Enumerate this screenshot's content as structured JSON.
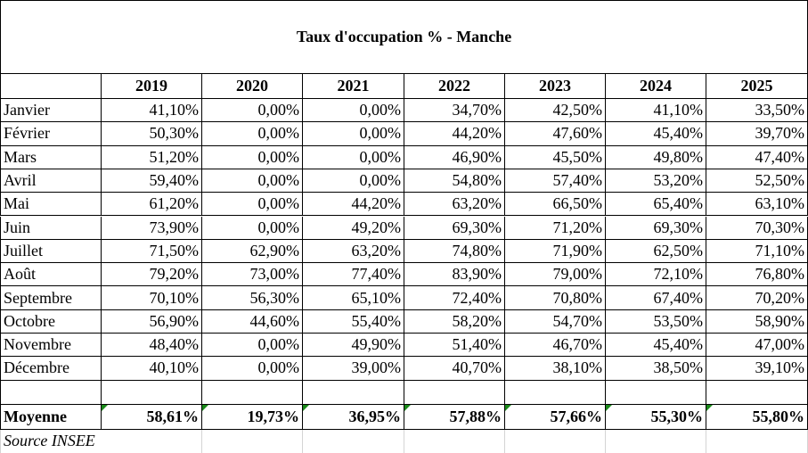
{
  "title": "Taux d'occupation % - Manche",
  "table": {
    "columns": [
      "2019",
      "2020",
      "2021",
      "2022",
      "2023",
      "2024",
      "2025"
    ],
    "rows": [
      {
        "label": "Janvier",
        "values": [
          "41,10%",
          "0,00%",
          "0,00%",
          "34,70%",
          "42,50%",
          "41,10%",
          "33,50%"
        ]
      },
      {
        "label": "Février",
        "values": [
          "50,30%",
          "0,00%",
          "0,00%",
          "44,20%",
          "47,60%",
          "45,40%",
          "39,70%"
        ]
      },
      {
        "label": "Mars",
        "values": [
          "51,20%",
          "0,00%",
          "0,00%",
          "46,90%",
          "45,50%",
          "49,80%",
          "47,40%"
        ]
      },
      {
        "label": "Avril",
        "values": [
          "59,40%",
          "0,00%",
          "0,00%",
          "54,80%",
          "57,40%",
          "53,20%",
          "52,50%"
        ]
      },
      {
        "label": "Mai",
        "values": [
          "61,20%",
          "0,00%",
          "44,20%",
          "63,20%",
          "66,50%",
          "65,40%",
          "63,10%"
        ]
      },
      {
        "label": "Juin",
        "values": [
          "73,90%",
          "0,00%",
          "49,20%",
          "69,30%",
          "71,20%",
          "69,30%",
          "70,30%"
        ]
      },
      {
        "label": "Juillet",
        "values": [
          "71,50%",
          "62,90%",
          "63,20%",
          "74,80%",
          "71,90%",
          "62,50%",
          "71,10%"
        ]
      },
      {
        "label": "Août",
        "values": [
          "79,20%",
          "73,00%",
          "77,40%",
          "83,90%",
          "79,00%",
          "72,10%",
          "76,80%"
        ]
      },
      {
        "label": "Septembre",
        "values": [
          "70,10%",
          "56,30%",
          "65,10%",
          "72,40%",
          "70,80%",
          "67,40%",
          "70,20%"
        ]
      },
      {
        "label": "Octobre",
        "values": [
          "56,90%",
          "44,60%",
          "55,40%",
          "58,20%",
          "54,70%",
          "53,50%",
          "58,90%"
        ]
      },
      {
        "label": "Novembre",
        "values": [
          "48,40%",
          "0,00%",
          "49,90%",
          "51,40%",
          "46,70%",
          "45,40%",
          "47,00%"
        ]
      },
      {
        "label": "Décembre",
        "values": [
          "40,10%",
          "0,00%",
          "39,00%",
          "40,70%",
          "38,10%",
          "38,50%",
          "39,10%"
        ]
      }
    ],
    "average": {
      "label": "Moyenne",
      "values": [
        "58,61%",
        "19,73%",
        "36,95%",
        "57,88%",
        "57,66%",
        "55,30%",
        "55,80%"
      ]
    }
  },
  "source": "Source INSEE"
}
